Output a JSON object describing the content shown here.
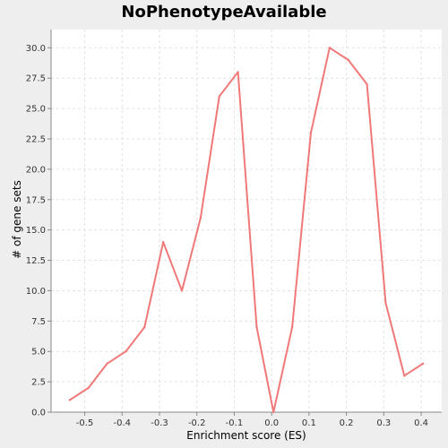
{
  "chart_data": {
    "type": "line",
    "title": "NoPhenotypeAvailable",
    "xlabel": "Enrichment score (ES)",
    "ylabel": "# of gene sets",
    "xlim": [
      -0.59,
      0.455
    ],
    "ylim": [
      0,
      31.5
    ],
    "x_ticks": [
      -0.5,
      -0.4,
      -0.3,
      -0.2,
      -0.1,
      0.0,
      0.1,
      0.2,
      0.3,
      0.4
    ],
    "x_tick_labels": [
      "-0.5",
      "-0.4",
      "-0.3",
      "-0.2",
      "-0.1",
      "0.0",
      "0.1",
      "0.2",
      "0.3",
      "0.4"
    ],
    "y_ticks": [
      0,
      2.5,
      5,
      7.5,
      10,
      12.5,
      15,
      17.5,
      20,
      22.5,
      25,
      27.5,
      30
    ],
    "y_tick_labels": [
      "0.0",
      "2.5",
      "5.0",
      "7.5",
      "10.0",
      "12.5",
      "15.0",
      "17.5",
      "20.0",
      "22.5",
      "25.0",
      "27.5",
      "30.0"
    ],
    "grid": true,
    "series": [
      {
        "name": "gene sets",
        "color": "#f07878",
        "x": [
          -0.54,
          -0.49,
          -0.44,
          -0.39,
          -0.34,
          -0.29,
          -0.24,
          -0.19,
          -0.14,
          -0.09,
          -0.04,
          0.005,
          0.055,
          0.105,
          0.155,
          0.205,
          0.255,
          0.305,
          0.355,
          0.405
        ],
        "y": [
          1,
          2,
          4,
          5,
          7,
          14,
          10,
          16,
          26,
          28,
          7,
          0,
          7,
          23,
          30,
          29,
          27,
          9,
          3,
          4
        ]
      }
    ]
  },
  "colors": {
    "background": "#eeeeee",
    "plot_background": "#ffffff",
    "line": "#f07878"
  }
}
